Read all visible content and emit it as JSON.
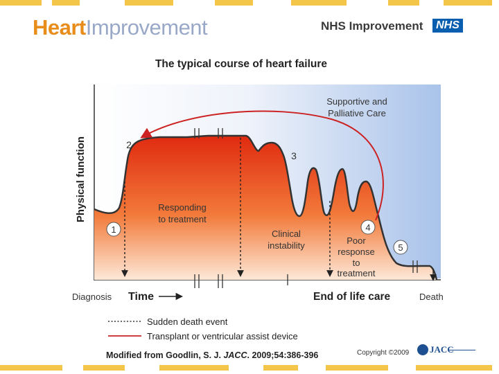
{
  "header": {
    "logo_part1": "Heart",
    "logo_part2": "Improvement",
    "org_name": "NHS Improvement",
    "nhs_badge": "NHS"
  },
  "diagram": {
    "title": "The typical course of heart failure",
    "y_axis_label": "Physical function",
    "x_start_label": "Diagnosis",
    "time_label": "Time",
    "end_of_life_label": "End of life care",
    "death_label": "Death",
    "supportive_care_label": [
      "Supportive and",
      "Palliative Care"
    ],
    "responding_label": [
      "Responding",
      "to treatment"
    ],
    "clinical_instability_label": [
      "Clinical",
      "instability"
    ],
    "poor_response_label": [
      "Poor",
      "response",
      "to",
      "treatment"
    ],
    "stage_markers": [
      "1",
      "2",
      "3",
      "4",
      "5"
    ],
    "legend": [
      {
        "label": "Sudden death event",
        "style": "dotted",
        "color": "#333333"
      },
      {
        "label": "Transplant or ventricular assist device",
        "style": "solid",
        "color": "#cc2222"
      }
    ]
  },
  "footer": {
    "citation_prefix": "Modified from Goodlin, S. J. ",
    "citation_journal": "JACC",
    "citation_suffix": ". 2009;54:386-396",
    "copyright": "Copyright ©2009",
    "journal_logo": "JACC"
  },
  "colors": {
    "accent_orange": "#e88c1a",
    "nhs_blue": "#0a5eb0",
    "curve_red": "#e03010",
    "arrow_red": "#cc2222",
    "stripe_yellow": "#f3c64a"
  }
}
